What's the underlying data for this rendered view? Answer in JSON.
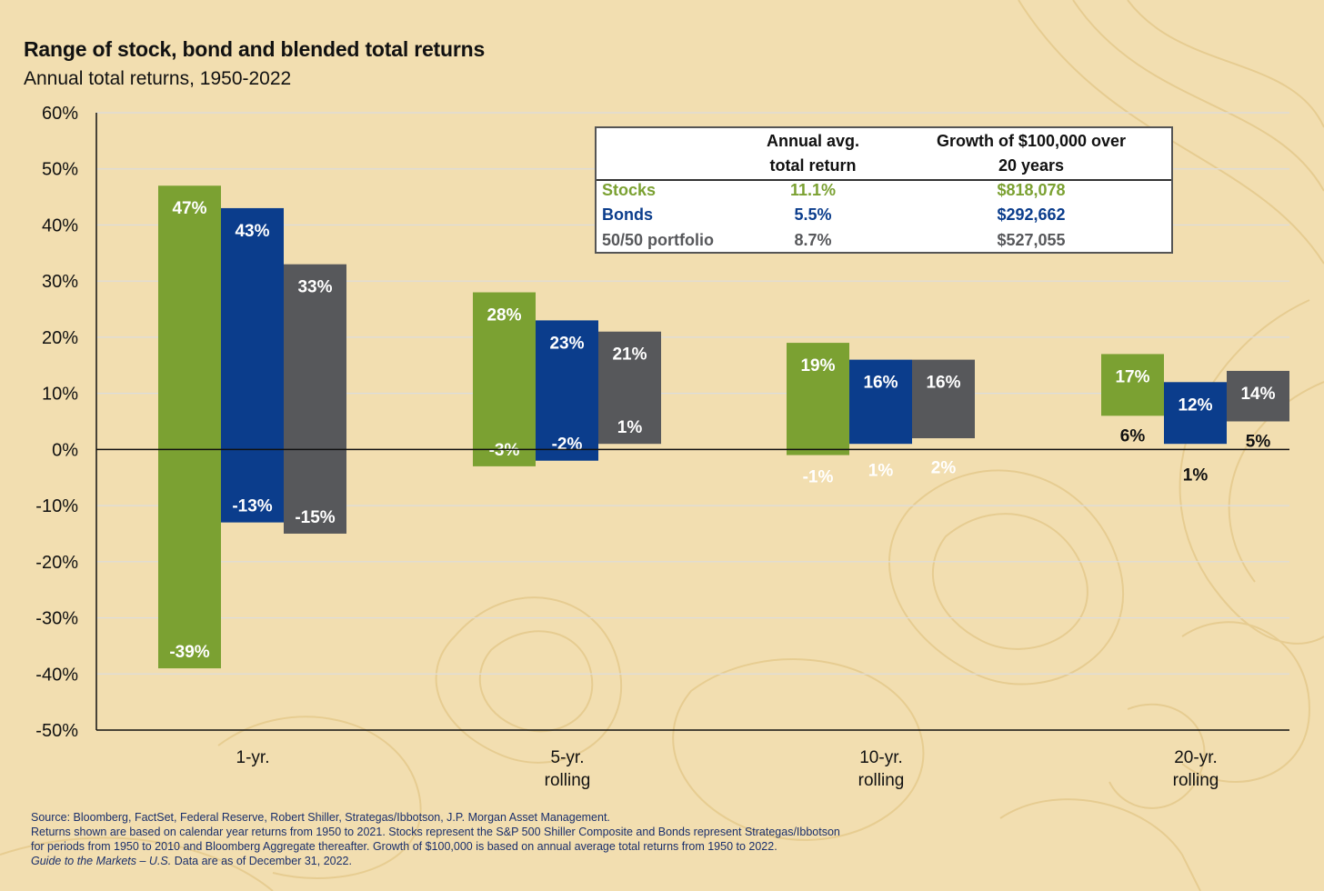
{
  "title": "Range of stock, bond and blended total returns",
  "subtitle": "Annual total returns, 1950-2022",
  "colors": {
    "stocks": "#7ba132",
    "bonds": "#0b3d8c",
    "blend": "#57585b",
    "background": "#f2deb0"
  },
  "chart_data": {
    "type": "bar",
    "subtype": "floating-range",
    "categories": [
      "1-yr.",
      "5-yr.\nrolling",
      "10-yr.\nrolling",
      "20-yr.\nrolling"
    ],
    "series": [
      {
        "name": "Stocks",
        "high": [
          47,
          28,
          19,
          17
        ],
        "low": [
          -39,
          -3,
          -1,
          6
        ],
        "high_labels": [
          "47%",
          "28%",
          "19%",
          "17%"
        ],
        "low_labels": [
          "-39%",
          "-3%",
          "-1%",
          "6%"
        ]
      },
      {
        "name": "Bonds",
        "high": [
          43,
          23,
          16,
          12
        ],
        "low": [
          -13,
          -2,
          1,
          1
        ],
        "high_labels": [
          "43%",
          "23%",
          "16%",
          "12%"
        ],
        "low_labels": [
          "-13%",
          "-2%",
          "1%",
          "1%"
        ]
      },
      {
        "name": "50/50 portfolio",
        "high": [
          33,
          21,
          16,
          14
        ],
        "low": [
          -15,
          1,
          2,
          5
        ],
        "high_labels": [
          "33%",
          "21%",
          "16%",
          "14%"
        ],
        "low_labels": [
          "-15%",
          "1%",
          "2%",
          "5%"
        ]
      }
    ],
    "ylim": [
      -50,
      60
    ],
    "yticks": [
      60,
      50,
      40,
      30,
      20,
      10,
      0,
      -10,
      -20,
      -30,
      -40,
      -50
    ],
    "ytick_labels": [
      "60%",
      "50%",
      "40%",
      "30%",
      "20%",
      "10%",
      "0%",
      "-10%",
      "-20%",
      "-30%",
      "-40%",
      "-50%"
    ],
    "grid": true,
    "xlabel": "",
    "ylabel": ""
  },
  "table": {
    "header": {
      "col2_line1": "Annual avg.",
      "col2_line2": "total return",
      "col3_line1": "Growth of $100,000 over",
      "col3_line2": "20 years"
    },
    "rows": [
      {
        "name": "Stocks",
        "avg": "11.1%",
        "growth": "$818,078"
      },
      {
        "name": "Bonds",
        "avg": "5.5%",
        "growth": "$292,662"
      },
      {
        "name": "50/50 portfolio",
        "avg": "8.7%",
        "growth": "$527,055"
      }
    ]
  },
  "footer": {
    "line1": "Source: Bloomberg, FactSet, Federal Reserve, Robert Shiller, Strategas/Ibbotson, J.P. Morgan Asset Management.",
    "line2": "Returns shown are based on calendar year returns from 1950 to 2021. Stocks represent the S&P 500 Shiller Composite and Bonds represent Strategas/Ibbotson",
    "line3": "for periods from 1950 to 2010 and Bloomberg Aggregate thereafter. Growth of $100,000 is based on annual average total returns from 1950 to 2022.",
    "line4_italic": "Guide to the Markets – U.S.",
    "line4_rest": " Data are as of December 31, 2022."
  }
}
